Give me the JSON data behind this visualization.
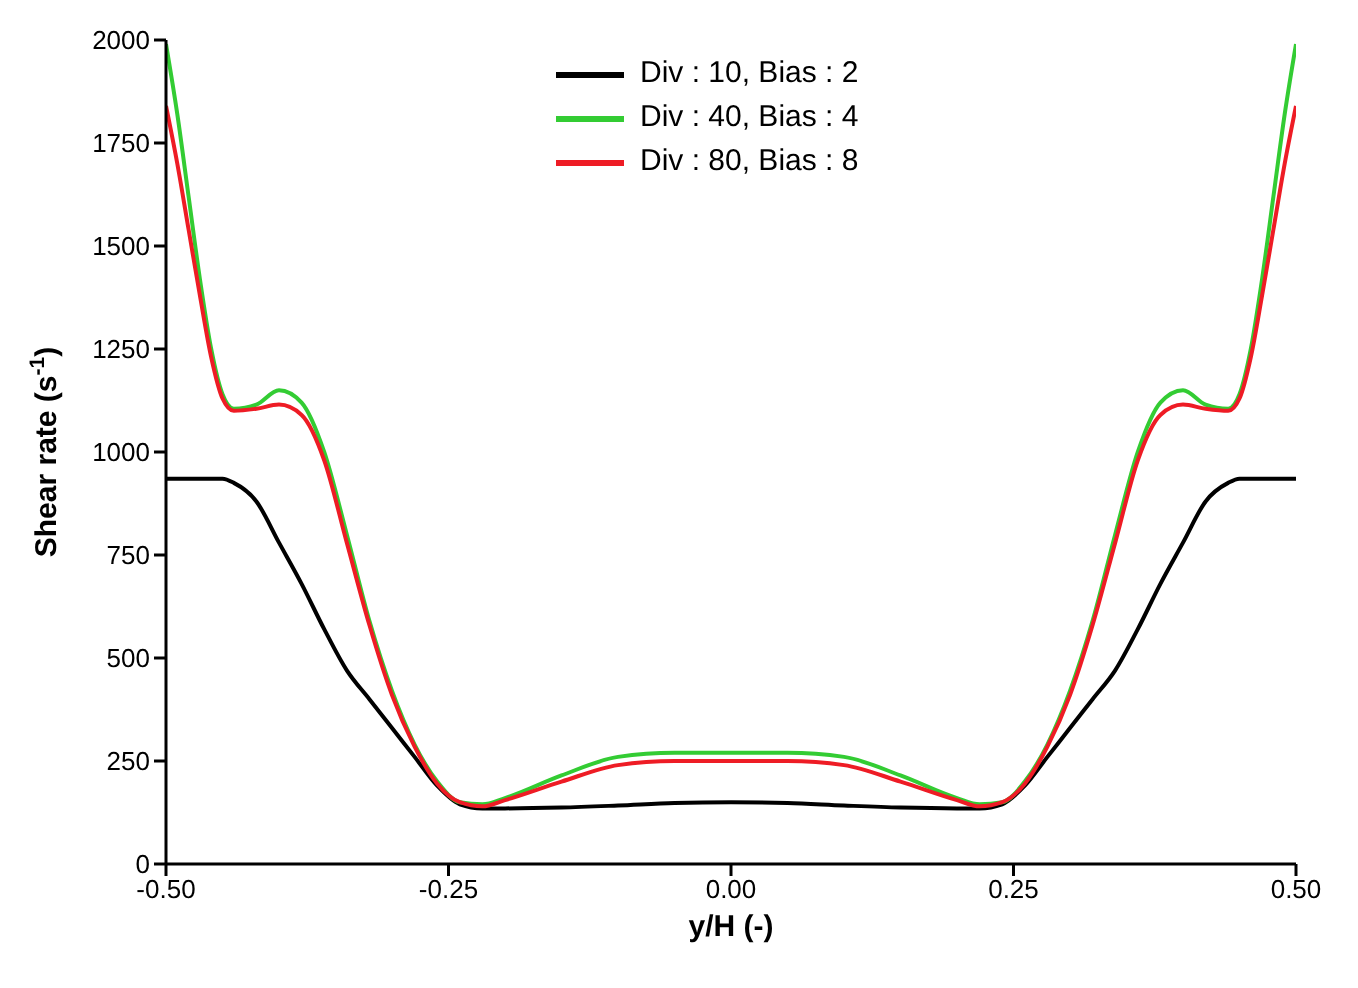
{
  "chart_data": {
    "type": "line",
    "xlabel": "y/H (-)",
    "ylabel": "Shear rate (s$^{-1}$)",
    "x": [
      -0.5,
      -0.49,
      -0.48,
      -0.47,
      -0.46,
      -0.45,
      -0.44,
      -0.42,
      -0.4,
      -0.38,
      -0.36,
      -0.34,
      -0.32,
      -0.3,
      -0.28,
      -0.26,
      -0.24,
      -0.22,
      -0.2,
      -0.15,
      -0.1,
      -0.05,
      0,
      0.05,
      0.1,
      0.15,
      0.2,
      0.22,
      0.24,
      0.26,
      0.28,
      0.3,
      0.32,
      0.34,
      0.36,
      0.38,
      0.4,
      0.42,
      0.44,
      0.45,
      0.46,
      0.47,
      0.48,
      0.49,
      0.5
    ],
    "series": [
      {
        "name": "Div : 10, Bias : 2",
        "color": "#000000",
        "values": [
          935,
          935,
          935,
          935,
          935,
          935,
          925,
          880,
          780,
          680,
          570,
          470,
          400,
          330,
          260,
          190,
          145,
          135,
          135,
          137,
          142,
          148,
          150,
          148,
          142,
          137,
          135,
          135,
          145,
          190,
          260,
          330,
          400,
          470,
          570,
          680,
          780,
          880,
          925,
          935,
          935,
          935,
          935,
          935,
          935
        ]
      },
      {
        "name": "Div : 40, Bias : 4",
        "color": "#33cc33",
        "values": [
          1990,
          1820,
          1620,
          1420,
          1250,
          1140,
          1105,
          1115,
          1150,
          1120,
          1000,
          800,
          590,
          420,
          290,
          200,
          150,
          145,
          160,
          215,
          260,
          270,
          270,
          270,
          260,
          215,
          160,
          145,
          150,
          200,
          290,
          420,
          590,
          800,
          1000,
          1120,
          1150,
          1115,
          1105,
          1140,
          1250,
          1420,
          1620,
          1820,
          1990
        ]
      },
      {
        "name": "Div : 80, Bias : 8",
        "color": "#ee1c25",
        "values": [
          1840,
          1700,
          1540,
          1380,
          1230,
          1130,
          1100,
          1105,
          1115,
          1090,
          980,
          780,
          580,
          410,
          285,
          195,
          150,
          140,
          155,
          200,
          240,
          250,
          250,
          250,
          240,
          200,
          155,
          140,
          150,
          195,
          285,
          410,
          580,
          780,
          980,
          1090,
          1115,
          1105,
          1100,
          1130,
          1230,
          1380,
          1540,
          1700,
          1840
        ]
      }
    ],
    "xlim": [
      -0.5,
      0.5
    ],
    "xticks": [
      {
        "value": -0.5,
        "label": "-0.50"
      },
      {
        "value": -0.25,
        "label": "-0.25"
      },
      {
        "value": 0,
        "label": "0.00"
      },
      {
        "value": 0.25,
        "label": "0.25"
      },
      {
        "value": 0.5,
        "label": "0.50"
      }
    ],
    "ylim": [
      0,
      2000
    ],
    "yticks": [
      0,
      250,
      500,
      750,
      1000,
      1250,
      1500,
      1750,
      2000
    ],
    "grid": false,
    "legend": "top",
    "marker": "none",
    "line_style": "solid"
  }
}
